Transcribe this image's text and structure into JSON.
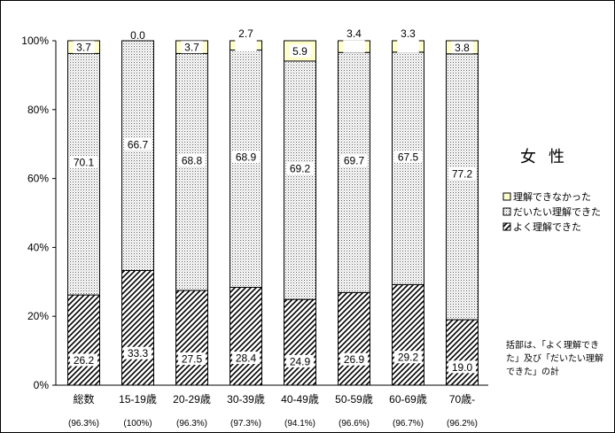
{
  "chart_data": {
    "type": "bar",
    "stacked": true,
    "categories": [
      "総数",
      "15-19歳",
      "20-29歳",
      "30-39歳",
      "40-49歳",
      "50-59歳",
      "60-69歳",
      "70歳-"
    ],
    "subtotals": [
      "(96.3%)",
      "(100%)",
      "(96.3%)",
      "(97.3%)",
      "(94.1%)",
      "(96.6%)",
      "(96.7%)",
      "(96.2%)"
    ],
    "series": [
      {
        "name": "よく理解できた",
        "values": [
          26.2,
          33.3,
          27.5,
          28.4,
          24.9,
          26.9,
          29.2,
          19.0
        ],
        "pattern": "hatch",
        "color": "#000000"
      },
      {
        "name": "だいたい理解できた",
        "values": [
          70.1,
          66.7,
          68.8,
          68.9,
          69.2,
          69.7,
          67.5,
          77.2
        ],
        "pattern": "dots",
        "color": "#808080"
      },
      {
        "name": "理解できなかった",
        "values": [
          3.7,
          0.0,
          3.7,
          2.7,
          5.9,
          3.4,
          3.3,
          3.8
        ],
        "pattern": "solid",
        "color": "#ffffcc"
      }
    ],
    "y_ticks": [
      "0%",
      "20%",
      "40%",
      "60%",
      "80%",
      "100%"
    ],
    "ylim": [
      0,
      100
    ],
    "legend_position": "right",
    "grid": false
  },
  "side_title": "女性",
  "legend_order": [
    2,
    1,
    0
  ],
  "note": [
    "括部は、「よく理解でき",
    "た」及び「だいたい理解",
    "できた」の計"
  ]
}
